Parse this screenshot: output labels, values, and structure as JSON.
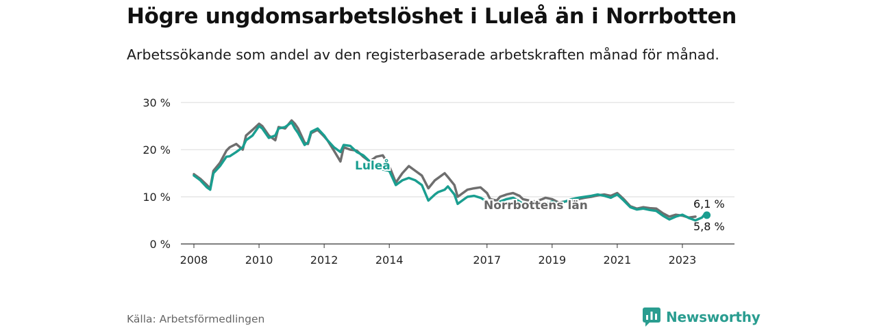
{
  "header": {
    "title": "Högre ungdomsarbetslöshet i Luleå än i Norrbotten",
    "subtitle": "Arbetssökande som andel av den registerbaserade arbetskraften månad för månad."
  },
  "footer": {
    "source": "Källa: Arbetsförmedlingen",
    "brand": "Newsworthy"
  },
  "colors": {
    "lulea": "#1a9e90",
    "norrbotten": "#6e6e6e",
    "grid": "#d9d9d9",
    "axis": "#333333"
  },
  "chart_data": {
    "type": "line",
    "title": "Högre ungdomsarbetslöshet i Luleå än i Norrbotten",
    "xlabel": "",
    "ylabel": "",
    "xlim": [
      2007.6,
      2024.6
    ],
    "ylim": [
      0,
      30
    ],
    "y_ticks": [
      0,
      10,
      20,
      30
    ],
    "y_tick_labels": [
      "0 %",
      "10 %",
      "20 %",
      "30 %"
    ],
    "x_ticks": [
      2008,
      2010,
      2012,
      2014,
      2017,
      2019,
      2021,
      2023
    ],
    "x_tick_labels": [
      "2008",
      "2010",
      "2012",
      "2014",
      "2017",
      "2019",
      "2021",
      "2023"
    ],
    "series": [
      {
        "name": "Norrbottens län",
        "label": "Norrbottens län",
        "end_label": "5,8 %",
        "x": [
          2008.0,
          2008.2,
          2008.4,
          2008.5,
          2008.6,
          2008.8,
          2009.0,
          2009.1,
          2009.3,
          2009.5,
          2009.6,
          2009.8,
          2010.0,
          2010.1,
          2010.3,
          2010.5,
          2010.6,
          2010.8,
          2011.0,
          2011.1,
          2011.2,
          2011.4,
          2011.5,
          2011.6,
          2011.8,
          2012.0,
          2012.1,
          2012.3,
          2012.5,
          2012.6,
          2012.8,
          2013.0,
          2013.2,
          2013.4,
          2013.6,
          2013.8,
          2014.0,
          2014.2,
          2014.4,
          2014.6,
          2014.8,
          2015.0,
          2015.2,
          2015.4,
          2015.5,
          2015.7,
          2015.8,
          2016.0,
          2016.1,
          2016.3,
          2016.4,
          2016.6,
          2016.8,
          2017.0,
          2017.1,
          2017.3,
          2017.4,
          2017.6,
          2017.8,
          2018.0,
          2018.1,
          2018.3,
          2018.5,
          2018.7,
          2018.8,
          2019.0,
          2019.2,
          2019.4,
          2019.6,
          2019.8,
          2020.0,
          2020.2,
          2020.4,
          2020.6,
          2020.8,
          2021.0,
          2021.2,
          2021.4,
          2021.6,
          2021.8,
          2022.0,
          2022.2,
          2022.4,
          2022.6,
          2022.8,
          2023.0,
          2023.2,
          2023.4
        ],
        "values": [
          14.8,
          13.8,
          12.5,
          11.8,
          15.5,
          17.2,
          19.8,
          20.5,
          21.2,
          20.0,
          23.0,
          24.2,
          25.5,
          25.0,
          23.0,
          22.0,
          24.8,
          24.5,
          26.2,
          25.5,
          24.5,
          21.5,
          21.2,
          23.5,
          24.2,
          22.8,
          22.0,
          19.8,
          17.5,
          20.5,
          20.0,
          19.8,
          18.5,
          17.5,
          18.5,
          18.8,
          16.5,
          13.0,
          15.0,
          16.5,
          15.5,
          14.5,
          11.8,
          13.5,
          14.0,
          15.0,
          14.2,
          12.5,
          10.0,
          11.0,
          11.5,
          11.8,
          12.0,
          10.8,
          9.5,
          9.2,
          10.0,
          10.5,
          10.8,
          10.2,
          9.5,
          9.2,
          9.0,
          9.5,
          9.8,
          9.5,
          8.8,
          9.0,
          9.2,
          9.5,
          9.8,
          10.0,
          10.3,
          10.5,
          10.2,
          10.8,
          9.5,
          8.0,
          7.5,
          7.8,
          7.6,
          7.5,
          6.5,
          5.8,
          6.2,
          6.0,
          5.6,
          5.8
        ]
      },
      {
        "name": "Luleå",
        "label": "Luleå",
        "end_label": "6,1 %",
        "x": [
          2008.0,
          2008.2,
          2008.4,
          2008.5,
          2008.6,
          2008.8,
          2009.0,
          2009.1,
          2009.3,
          2009.5,
          2009.6,
          2009.8,
          2010.0,
          2010.1,
          2010.3,
          2010.5,
          2010.6,
          2010.8,
          2011.0,
          2011.1,
          2011.2,
          2011.4,
          2011.5,
          2011.6,
          2011.8,
          2012.0,
          2012.1,
          2012.3,
          2012.5,
          2012.6,
          2012.8,
          2013.0,
          2013.2,
          2013.4,
          2013.6,
          2013.8,
          2014.0,
          2014.2,
          2014.4,
          2014.6,
          2014.8,
          2015.0,
          2015.2,
          2015.4,
          2015.5,
          2015.7,
          2015.8,
          2016.0,
          2016.1,
          2016.3,
          2016.4,
          2016.6,
          2016.8,
          2017.0,
          2017.1,
          2017.3,
          2017.4,
          2017.6,
          2017.8,
          2018.0,
          2018.1,
          2018.3,
          2018.5,
          2018.7,
          2018.8,
          2019.0,
          2019.2,
          2019.4,
          2019.6,
          2019.8,
          2020.0,
          2020.2,
          2020.4,
          2020.6,
          2020.8,
          2021.0,
          2021.2,
          2021.4,
          2021.6,
          2021.8,
          2022.0,
          2022.2,
          2022.4,
          2022.6,
          2022.8,
          2023.0,
          2023.2,
          2023.4,
          2023.6,
          2023.7,
          2023.75
        ],
        "values": [
          14.5,
          13.5,
          12.0,
          11.5,
          15.0,
          16.5,
          18.5,
          18.6,
          19.5,
          20.5,
          22.0,
          23.0,
          25.0,
          24.5,
          22.5,
          23.0,
          24.5,
          24.8,
          25.8,
          24.5,
          23.5,
          21.0,
          21.5,
          23.8,
          24.5,
          23.0,
          22.0,
          20.5,
          19.5,
          21.0,
          20.8,
          19.5,
          18.8,
          17.5,
          16.5,
          15.8,
          15.5,
          12.5,
          13.5,
          14.0,
          13.5,
          12.5,
          9.2,
          10.5,
          11.0,
          11.5,
          12.2,
          10.5,
          8.5,
          9.5,
          10.0,
          10.2,
          9.8,
          9.0,
          8.5,
          8.2,
          9.0,
          9.5,
          9.8,
          9.0,
          8.5,
          8.2,
          7.5,
          8.0,
          8.5,
          9.0,
          8.5,
          9.0,
          9.5,
          9.8,
          10.0,
          10.2,
          10.5,
          10.2,
          9.8,
          10.5,
          9.2,
          7.8,
          7.3,
          7.5,
          7.2,
          7.0,
          6.0,
          5.2,
          5.8,
          6.2,
          5.5,
          5.0,
          5.6,
          6.4,
          6.1
        ]
      }
    ]
  }
}
